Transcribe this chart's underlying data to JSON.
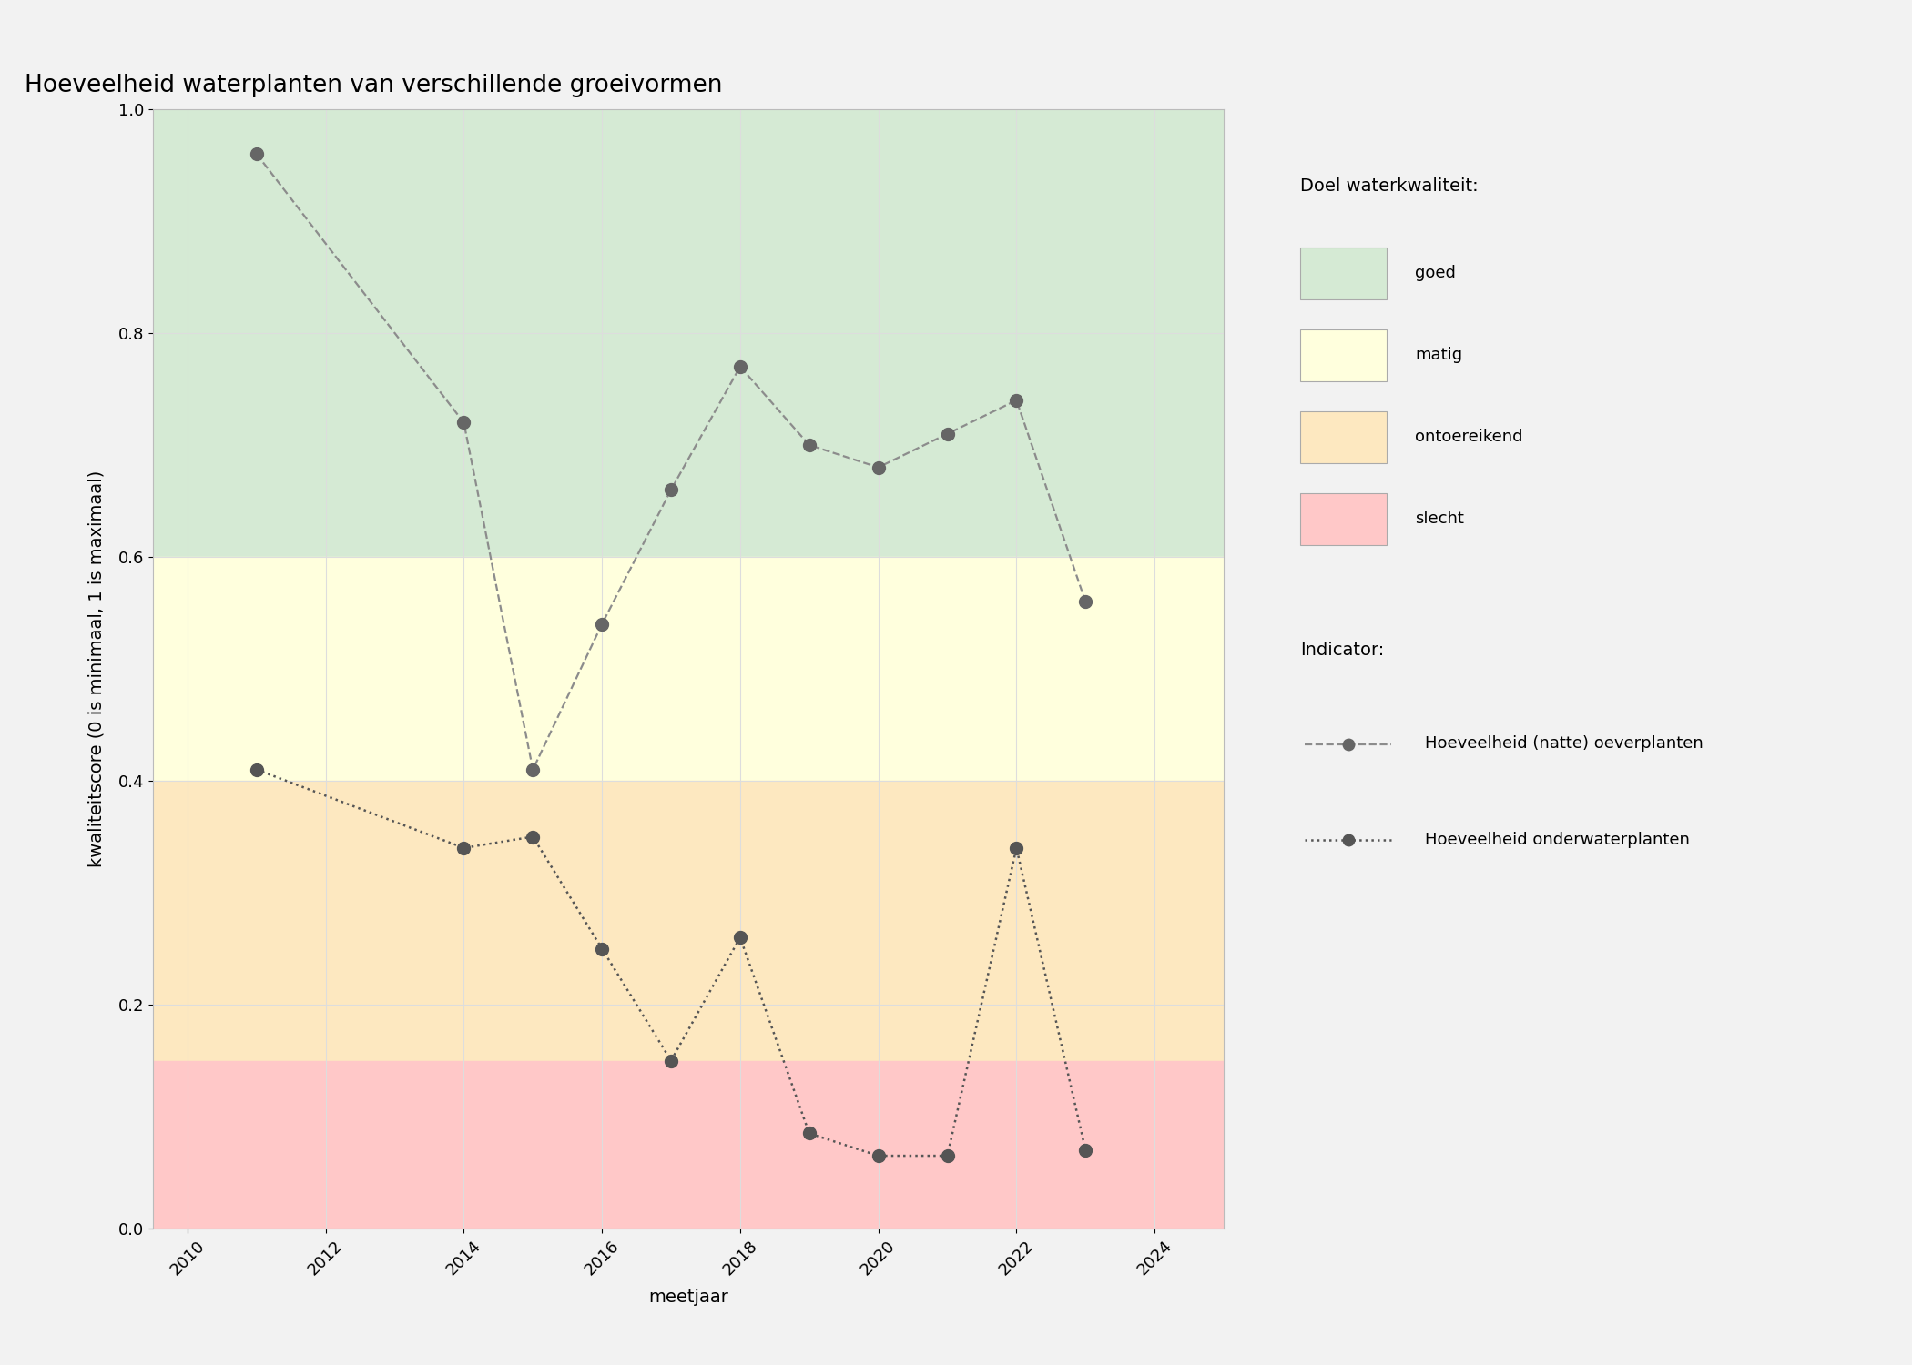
{
  "title": "Hoeveelheid waterplanten van verschillende groeivormen",
  "xlabel": "meetjaar",
  "ylabel": "kwaliteitscore (0 is minimaal, 1 is maximaal)",
  "xlim": [
    2009.5,
    2025
  ],
  "ylim": [
    0.0,
    1.0
  ],
  "xticks": [
    2010,
    2012,
    2014,
    2016,
    2018,
    2020,
    2022,
    2024
  ],
  "yticks": [
    0.0,
    0.2,
    0.4,
    0.6,
    0.8,
    1.0
  ],
  "bg_color": "#f2f2f2",
  "plot_bg": "#ffffff",
  "zones": [
    {
      "name": "goed",
      "ymin": 0.6,
      "ymax": 1.0,
      "color": "#d5ead4"
    },
    {
      "name": "matig",
      "ymin": 0.4,
      "ymax": 0.6,
      "color": "#ffffdd"
    },
    {
      "name": "ontoereikend",
      "ymin": 0.15,
      "ymax": 0.4,
      "color": "#fde8c0"
    },
    {
      "name": "slecht",
      "ymin": 0.0,
      "ymax": 0.15,
      "color": "#ffc8c8"
    }
  ],
  "line1": {
    "label": "Hoeveelheid (natte) oeverplanten",
    "x": [
      2011,
      2014,
      2015,
      2016,
      2017,
      2018,
      2019,
      2020,
      2021,
      2022,
      2023
    ],
    "y": [
      0.96,
      0.72,
      0.41,
      0.54,
      0.66,
      0.77,
      0.7,
      0.68,
      0.71,
      0.74,
      0.56
    ],
    "color": "#8c8c8c",
    "linestyle": "dashed",
    "linewidth": 1.6,
    "markersize": 10,
    "markercolor": "#666666"
  },
  "line2": {
    "label": "Hoeveelheid onderwaterplanten",
    "x": [
      2011,
      2014,
      2015,
      2016,
      2017,
      2018,
      2019,
      2020,
      2021,
      2022,
      2023
    ],
    "y": [
      0.41,
      0.34,
      0.35,
      0.25,
      0.15,
      0.26,
      0.085,
      0.065,
      0.065,
      0.34,
      0.07
    ],
    "color": "#555555",
    "linestyle": "dotted",
    "linewidth": 1.8,
    "markersize": 10,
    "markercolor": "#555555"
  },
  "legend_zone_labels": [
    "goed",
    "matig",
    "ontoereikend",
    "slecht"
  ],
  "legend_zone_colors": [
    "#d5ead4",
    "#ffffdd",
    "#fde8c0",
    "#ffc8c8"
  ],
  "grid_color": "#dddddd",
  "title_fontsize": 19,
  "label_fontsize": 14,
  "tick_fontsize": 13,
  "legend_fontsize": 13,
  "legend_title_fontsize": 14
}
